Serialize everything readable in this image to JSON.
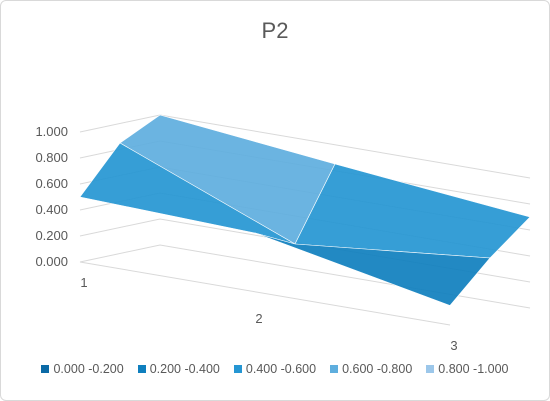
{
  "chart_data": {
    "type": "surface",
    "title": "P2",
    "series_names": [
      "1",
      "2",
      "3"
    ],
    "categories": [
      "1",
      "2",
      "3"
    ],
    "z_ticks": [
      "0.000",
      "0.200",
      "0.400",
      "0.600",
      "0.800",
      "1.000"
    ],
    "zlim": [
      0,
      1.2
    ],
    "values": [
      [
        0.5,
        0.5,
        0.15
      ],
      [
        0.85,
        0.35,
        0.45
      ],
      [
        1.0,
        0.9,
        0.7
      ]
    ],
    "legend_position": "bottom",
    "bands": [
      {
        "label": "0.000 -0.200",
        "color": "#0b6aa6"
      },
      {
        "label": "0.200 -0.400",
        "color": "#0f7fbe"
      },
      {
        "label": "0.400 -0.600",
        "color": "#2596d3"
      },
      {
        "label": "0.600 -0.800",
        "color": "#5eaede"
      },
      {
        "label": "0.800 -1.000",
        "color": "#9cc7ea"
      }
    ]
  }
}
